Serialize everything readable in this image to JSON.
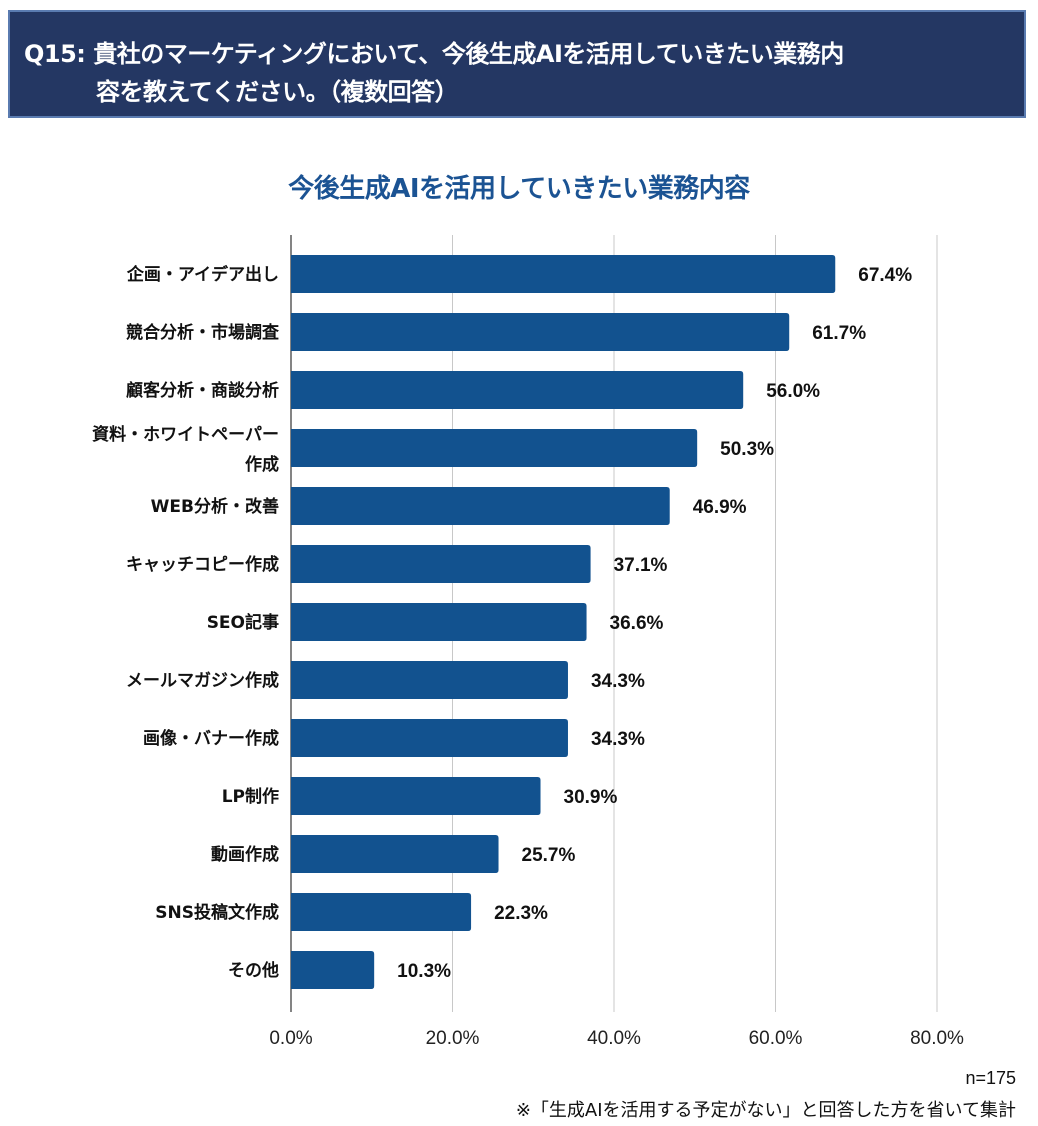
{
  "header": {
    "line1": "Q15: 貴社のマーケティングにおいて、今後生成AIを活用していきたい業務内",
    "line2": "容を教えてください。（複数回答）"
  },
  "colors": {
    "bar": "#12528f",
    "header_bg": "#243763",
    "title": "#1b5393",
    "grid": "#c8c8c8",
    "axis": "#333333"
  },
  "chart_data": {
    "type": "bar",
    "orientation": "horizontal",
    "title": "今後生成AIを活用していきたい業務内容",
    "categories": [
      [
        "企画・アイデア出し"
      ],
      [
        "競合分析・市場調査"
      ],
      [
        "顧客分析・商談分析"
      ],
      [
        "資料・ホワイトペーパー",
        "作成"
      ],
      [
        "WEB分析・改善"
      ],
      [
        "キャッチコピー作成"
      ],
      [
        "SEO記事"
      ],
      [
        "メールマガジン作成"
      ],
      [
        "画像・バナー作成"
      ],
      [
        "LP制作"
      ],
      [
        "動画作成"
      ],
      [
        "SNS投稿文作成"
      ],
      [
        "その他"
      ]
    ],
    "values": [
      67.4,
      61.7,
      56.0,
      50.3,
      46.9,
      37.1,
      36.6,
      34.3,
      34.3,
      30.9,
      25.7,
      22.3,
      10.3
    ],
    "value_labels": [
      "67.4%",
      "61.7%",
      "56.0%",
      "50.3%",
      "46.9%",
      "37.1%",
      "36.6%",
      "34.3%",
      "34.3%",
      "30.9%",
      "25.7%",
      "22.3%",
      "10.3%"
    ],
    "xlim": [
      0,
      80
    ],
    "xticks": [
      0,
      20,
      40,
      60,
      80
    ],
    "xtick_labels": [
      "0.0%",
      "20.0%",
      "40.0%",
      "60.0%",
      "80.0%"
    ],
    "xlabel": "",
    "ylabel": "",
    "grid": true,
    "legend": "none"
  },
  "notes": {
    "n": "n=175",
    "footnote": "※「生成AIを活用する予定がない」と回答した方を省いて集計"
  }
}
